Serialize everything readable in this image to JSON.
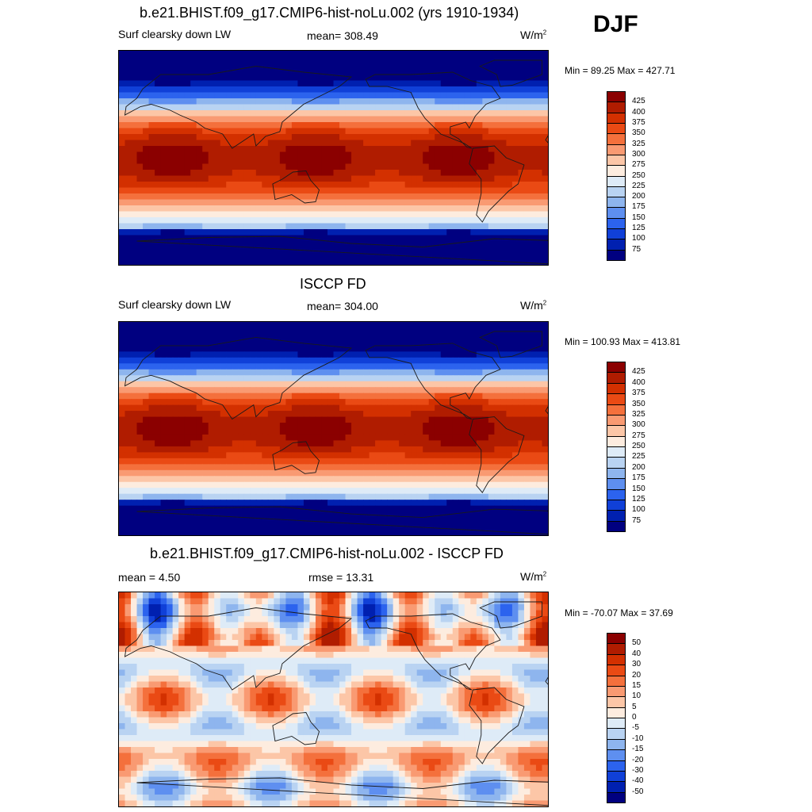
{
  "season": "DJF",
  "panels": [
    {
      "title": "b.e21.BHIST.f09_g17.CMIP6-hist-noLu.002 (yrs 1910-1934)",
      "left_label": "Surf clearsky down LW",
      "center_label": "mean= 308.49",
      "units_base": "W/m",
      "units_exp": "2",
      "minmax": "Min =  89.25 Max = 427.71"
    },
    {
      "title": "ISCCP FD",
      "left_label": "Surf clearsky down LW",
      "center_label": "mean= 304.00",
      "units_base": "W/m",
      "units_exp": "2",
      "minmax": "Min = 100.93 Max = 413.81"
    },
    {
      "title": "b.e21.BHIST.f09_g17.CMIP6-hist-noLu.002 - ISCCP FD",
      "left_label": "mean =   4.50",
      "center_label": "rmse =  13.31",
      "units_base": "W/m",
      "units_exp": "2",
      "minmax": "Min = -70.07 Max =  37.69"
    }
  ],
  "chart_data": [
    {
      "type": "heatmap",
      "title": "b.e21.BHIST.f09_g17.CMIP6-hist-noLu.002 (yrs 1910-1934)",
      "variable": "Surf clearsky down LW",
      "units": "W/m2",
      "mean": 308.49,
      "min": 89.25,
      "max": 427.71,
      "colorbar_levels": [
        425,
        400,
        375,
        350,
        325,
        300,
        275,
        250,
        225,
        200,
        175,
        150,
        125,
        100,
        75
      ],
      "colorbar_colors": [
        "#8b0000",
        "#b01c00",
        "#d33000",
        "#ea4a14",
        "#f4703c",
        "#f99a72",
        "#fcc6a7",
        "#fdecdf",
        "#deebf7",
        "#b9d3f2",
        "#8eb5ee",
        "#5e8ff0",
        "#2c63ee",
        "#1040d8",
        "#0020b0",
        "#000080"
      ]
    },
    {
      "type": "heatmap",
      "title": "ISCCP FD",
      "variable": "Surf clearsky down LW",
      "units": "W/m2",
      "mean": 304.0,
      "min": 100.93,
      "max": 413.81,
      "colorbar_levels": [
        425,
        400,
        375,
        350,
        325,
        300,
        275,
        250,
        225,
        200,
        175,
        150,
        125,
        100,
        75
      ],
      "colorbar_colors": [
        "#8b0000",
        "#b01c00",
        "#d33000",
        "#ea4a14",
        "#f4703c",
        "#f99a72",
        "#fcc6a7",
        "#fdecdf",
        "#deebf7",
        "#b9d3f2",
        "#8eb5ee",
        "#5e8ff0",
        "#2c63ee",
        "#1040d8",
        "#0020b0",
        "#000080"
      ]
    },
    {
      "type": "heatmap",
      "title": "b.e21.BHIST.f09_g17.CMIP6-hist-noLu.002 - ISCCP FD",
      "units": "W/m2",
      "mean": 4.5,
      "rmse": 13.31,
      "min": -70.07,
      "max": 37.69,
      "colorbar_levels": [
        50,
        40,
        30,
        20,
        15,
        10,
        5,
        0,
        -5,
        -10,
        -15,
        -20,
        -30,
        -40,
        -50
      ],
      "colorbar_colors": [
        "#8b0000",
        "#b01c00",
        "#d33000",
        "#ea4a14",
        "#f4703c",
        "#f99a72",
        "#fcc6a7",
        "#fdecdf",
        "#deebf7",
        "#b9d3f2",
        "#8eb5ee",
        "#5e8ff0",
        "#2c63ee",
        "#1040d8",
        "#0020b0",
        "#000080"
      ]
    }
  ]
}
